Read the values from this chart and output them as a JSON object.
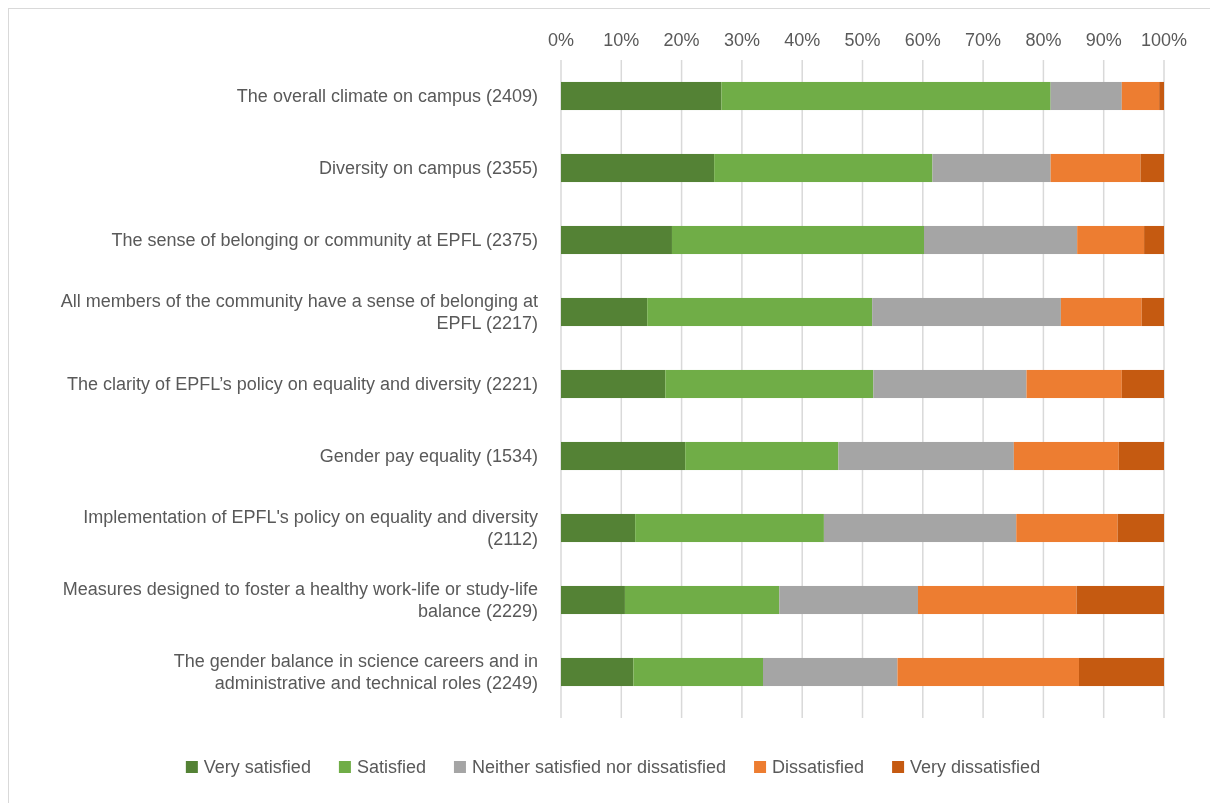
{
  "chart_data": {
    "type": "bar",
    "orientation": "horizontal",
    "stacked": true,
    "categories": [
      "The overall climate on campus (2409)",
      "Diversity on campus (2355)",
      "The sense of belonging or community at EPFL (2375)",
      "All members of the community have a sense of belonging at EPFL (2217)",
      "The clarity of EPFL’s policy on equality and diversity (2221)",
      "Gender pay equality (1534)",
      "Implementation of EPFL's policy on equality and diversity (2112)",
      "Measures designed to foster a healthy work-life or study-life balance (2229)",
      "The gender balance in science careers and in administrative and technical roles (2249)"
    ],
    "series": [
      {
        "name": "Very satisfied",
        "color": "#548235",
        "values": [
          26.6,
          25.4,
          18.4,
          14.3,
          17.3,
          20.6,
          12.3,
          10.6,
          12.0
        ]
      },
      {
        "name": "Satisfied",
        "color": "#70ad47",
        "values": [
          54.6,
          36.2,
          41.8,
          37.3,
          34.5,
          25.4,
          31.3,
          25.6,
          21.5
        ]
      },
      {
        "name": "Neither satisfied nor dissatisfied",
        "color": "#a5a5a5",
        "values": [
          11.8,
          19.6,
          25.4,
          31.3,
          25.4,
          29.1,
          31.9,
          23.0,
          22.3
        ]
      },
      {
        "name": "Dissatisfied",
        "color": "#ed7d31",
        "values": [
          6.2,
          14.9,
          11.1,
          13.4,
          15.8,
          17.4,
          16.8,
          26.3,
          30.1
        ]
      },
      {
        "name": "Very dissatisfied",
        "color": "#c55a11",
        "values": [
          0.8,
          3.9,
          3.3,
          3.7,
          7.0,
          7.5,
          7.7,
          14.5,
          14.1
        ]
      }
    ],
    "xlim": [
      0,
      100
    ],
    "xticks": [
      {
        "value": 0,
        "label": "0%"
      },
      {
        "value": 10,
        "label": "10%"
      },
      {
        "value": 20,
        "label": "20%"
      },
      {
        "value": 30,
        "label": "30%"
      },
      {
        "value": 40,
        "label": "40%"
      },
      {
        "value": 50,
        "label": "50%"
      },
      {
        "value": 60,
        "label": "60%"
      },
      {
        "value": 70,
        "label": "70%"
      },
      {
        "value": 80,
        "label": "80%"
      },
      {
        "value": 90,
        "label": "90%"
      },
      {
        "value": 100,
        "label": "100%"
      }
    ],
    "grid": "x",
    "legend": "bottom"
  }
}
